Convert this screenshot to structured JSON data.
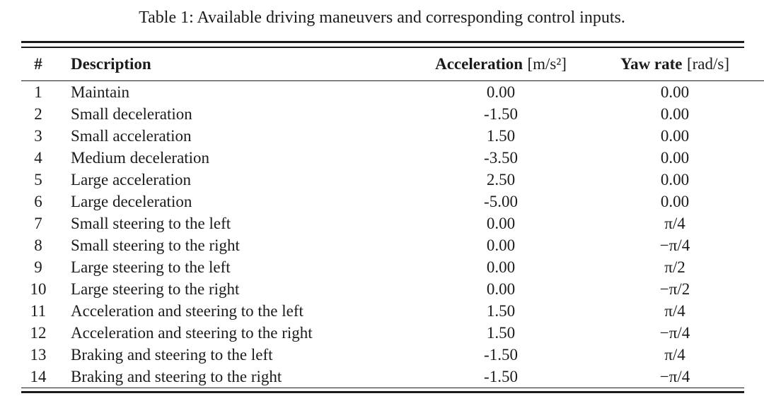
{
  "caption": "Table 1: Available driving maneuvers and corresponding control inputs.",
  "colors": {
    "text": "#1b1b1b",
    "background": "#ffffff",
    "rule": "#1b1b1b"
  },
  "table": {
    "columns": [
      {
        "label": "#",
        "unit": ""
      },
      {
        "label": "Description",
        "unit": ""
      },
      {
        "label": "Acceleration",
        "unit": "[m/s²]"
      },
      {
        "label": "Yaw rate",
        "unit": "[rad/s]"
      }
    ],
    "rows": [
      {
        "num": "1",
        "description": "Maintain",
        "acceleration": "0.00",
        "yaw_rate": "0.00"
      },
      {
        "num": "2",
        "description": "Small deceleration",
        "acceleration": "-1.50",
        "yaw_rate": "0.00"
      },
      {
        "num": "3",
        "description": "Small acceleration",
        "acceleration": "1.50",
        "yaw_rate": "0.00"
      },
      {
        "num": "4",
        "description": "Medium deceleration",
        "acceleration": "-3.50",
        "yaw_rate": "0.00"
      },
      {
        "num": "5",
        "description": "Large acceleration",
        "acceleration": "2.50",
        "yaw_rate": "0.00"
      },
      {
        "num": "6",
        "description": "Large deceleration",
        "acceleration": "-5.00",
        "yaw_rate": "0.00"
      },
      {
        "num": "7",
        "description": "Small steering to the left",
        "acceleration": "0.00",
        "yaw_rate": "π/4"
      },
      {
        "num": "8",
        "description": "Small steering to the right",
        "acceleration": "0.00",
        "yaw_rate": "−π/4"
      },
      {
        "num": "9",
        "description": "Large steering to the left",
        "acceleration": "0.00",
        "yaw_rate": "π/2"
      },
      {
        "num": "10",
        "description": "Large steering to the right",
        "acceleration": "0.00",
        "yaw_rate": "−π/2"
      },
      {
        "num": "11",
        "description": "Acceleration and steering to the left",
        "acceleration": "1.50",
        "yaw_rate": "π/4"
      },
      {
        "num": "12",
        "description": "Acceleration and steering to the right",
        "acceleration": "1.50",
        "yaw_rate": "−π/4"
      },
      {
        "num": "13",
        "description": "Braking and steering to the left",
        "acceleration": "-1.50",
        "yaw_rate": "π/4"
      },
      {
        "num": "14",
        "description": "Braking and steering to the right",
        "acceleration": "-1.50",
        "yaw_rate": "−π/4"
      }
    ]
  }
}
